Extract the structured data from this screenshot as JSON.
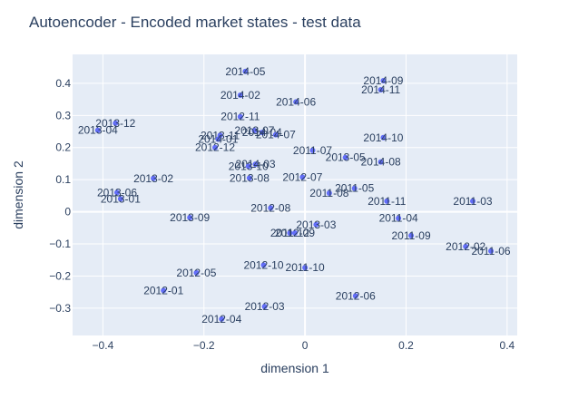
{
  "chart_data": {
    "type": "scatter",
    "title": "Autoencoder - Encoded market states - test data",
    "xlabel": "dimension 1",
    "ylabel": "dimension 2",
    "xlim": [
      -0.46,
      0.42
    ],
    "ylim": [
      -0.385,
      0.49
    ],
    "x_ticks": [
      -0.4,
      -0.2,
      0,
      0.2,
      0.4
    ],
    "x_tick_labels": [
      "−0.4",
      "−0.2",
      "0",
      "0.2",
      "0.4"
    ],
    "y_ticks": [
      -0.3,
      -0.2,
      -0.1,
      0,
      0.1,
      0.2,
      0.3,
      0.4
    ],
    "y_tick_labels": [
      "−0.3",
      "−0.2",
      "−0.1",
      "0",
      "0.1",
      "0.2",
      "0.3",
      "0.4"
    ],
    "grid": true,
    "marker_color": "#636efa",
    "plot_bg": "#e5ecf6",
    "points": [
      {
        "label": "2014-05",
        "x": -0.118,
        "y": 0.437
      },
      {
        "label": "2014-09",
        "x": 0.155,
        "y": 0.408
      },
      {
        "label": "2014-11",
        "x": 0.15,
        "y": 0.38
      },
      {
        "label": "2014-02",
        "x": -0.128,
        "y": 0.363
      },
      {
        "label": "2014-06",
        "x": -0.018,
        "y": 0.342
      },
      {
        "label": "2013-12",
        "x": -0.375,
        "y": 0.276
      },
      {
        "label": "2012-11",
        "x": -0.128,
        "y": 0.296
      },
      {
        "label": "2013-04",
        "x": -0.41,
        "y": 0.254
      },
      {
        "label": "2013-07",
        "x": -0.1,
        "y": 0.253
      },
      {
        "label": "2014-04",
        "x": -0.085,
        "y": 0.247
      },
      {
        "label": "2014-07",
        "x": -0.058,
        "y": 0.24
      },
      {
        "label": "2013-11",
        "x": -0.168,
        "y": 0.238
      },
      {
        "label": "2014-01",
        "x": -0.172,
        "y": 0.226
      },
      {
        "label": "2014-10",
        "x": 0.155,
        "y": 0.231
      },
      {
        "label": "2012-12",
        "x": -0.178,
        "y": 0.2
      },
      {
        "label": "2011-07",
        "x": 0.015,
        "y": 0.191
      },
      {
        "label": "2013-05",
        "x": 0.08,
        "y": 0.169
      },
      {
        "label": "2014-08",
        "x": 0.15,
        "y": 0.155
      },
      {
        "label": "2014-03",
        "x": -0.098,
        "y": 0.148
      },
      {
        "label": "2013-10",
        "x": -0.112,
        "y": 0.142
      },
      {
        "label": "2013-08",
        "x": -0.11,
        "y": 0.105
      },
      {
        "label": "2012-07",
        "x": -0.005,
        "y": 0.108
      },
      {
        "label": "2013-02",
        "x": -0.3,
        "y": 0.104
      },
      {
        "label": "2011-05",
        "x": 0.098,
        "y": 0.073
      },
      {
        "label": "2011-08",
        "x": 0.048,
        "y": 0.058
      },
      {
        "label": "2013-06",
        "x": -0.372,
        "y": 0.06
      },
      {
        "label": "2013-01",
        "x": -0.365,
        "y": 0.04
      },
      {
        "label": "2011-11",
        "x": 0.162,
        "y": 0.033
      },
      {
        "label": "2011-03",
        "x": 0.332,
        "y": 0.033
      },
      {
        "label": "2012-08",
        "x": -0.068,
        "y": 0.012
      },
      {
        "label": "2013-09",
        "x": -0.228,
        "y": -0.018
      },
      {
        "label": "2011-04",
        "x": 0.185,
        "y": -0.02
      },
      {
        "label": "2013-03",
        "x": 0.022,
        "y": -0.04
      },
      {
        "label": "2011-12",
        "x": -0.03,
        "y": -0.066
      },
      {
        "label": "2012-09",
        "x": -0.02,
        "y": -0.066
      },
      {
        "label": "2011-09",
        "x": 0.21,
        "y": -0.074
      },
      {
        "label": "2012-02",
        "x": 0.318,
        "y": -0.108
      },
      {
        "label": "2011-06",
        "x": 0.368,
        "y": -0.122
      },
      {
        "label": "2012-10",
        "x": -0.082,
        "y": -0.166
      },
      {
        "label": "2011-10",
        "x": 0.0,
        "y": -0.174
      },
      {
        "label": "2012-05",
        "x": -0.215,
        "y": -0.19
      },
      {
        "label": "2012-01",
        "x": -0.28,
        "y": -0.245
      },
      {
        "label": "2012-06",
        "x": 0.1,
        "y": -0.262
      },
      {
        "label": "2012-03",
        "x": -0.08,
        "y": -0.295
      },
      {
        "label": "2012-04",
        "x": -0.165,
        "y": -0.334
      }
    ]
  }
}
